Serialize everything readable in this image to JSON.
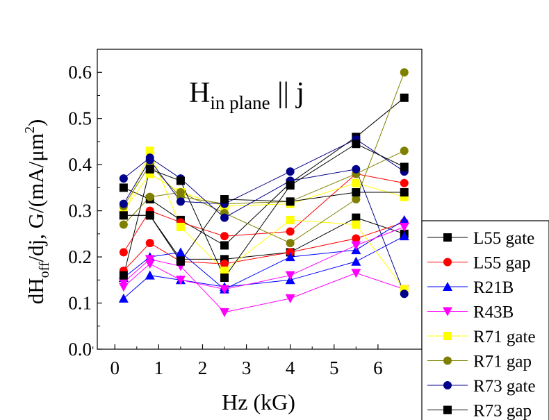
{
  "chart_data": {
    "type": "line",
    "title_main": "H",
    "title_sub": "in plane",
    "title_suffix": " || j",
    "xlabel": "Hz (kG)",
    "ylabel": {
      "p1": "dH",
      "p1_sub": "off",
      "p2": "/dj, G/(mA/μm",
      "p2_sup": "2",
      "p3": ")"
    },
    "xlim": [
      -0.4,
      7.0
    ],
    "ylim": [
      0.0,
      0.65
    ],
    "xticks": [
      0,
      1,
      2,
      3,
      4,
      5,
      6
    ],
    "xtick_labels": [
      "0",
      "1",
      "2",
      "3",
      "4",
      "5",
      "6"
    ],
    "yticks": [
      0.0,
      0.1,
      0.2,
      0.3,
      0.4,
      0.5,
      0.6
    ],
    "ytick_labels": [
      "0.0",
      "0.1",
      "0.2",
      "0.3",
      "0.4",
      "0.5",
      "0.6"
    ],
    "series": [
      {
        "name": "L55 gate",
        "color": "#000000",
        "marker": "square",
        "lines": [
          {
            "x": [
              0.2,
              0.8,
              1.5,
              2.5,
              4.0,
              5.5,
              6.6
            ],
            "y": [
              0.29,
              0.29,
              0.195,
              0.195,
              0.21,
              0.285,
              0.25
            ]
          },
          {
            "x": [
              0.2,
              0.8,
              1.5,
              2.5,
              4.0,
              5.5,
              6.6
            ],
            "y": [
              0.35,
              0.325,
              0.28,
              0.225,
              0.36,
              0.46,
              0.545
            ]
          }
        ]
      },
      {
        "name": "L55 gap",
        "color": "#ff0000",
        "marker": "circle",
        "lines": [
          {
            "x": [
              0.2,
              0.8,
              1.5,
              2.5,
              4.0,
              5.5,
              6.6
            ],
            "y": [
              0.21,
              0.3,
              0.275,
              0.245,
              0.255,
              0.38,
              0.36
            ]
          },
          {
            "x": [
              0.2,
              0.8,
              1.5,
              2.5,
              4.0,
              5.5,
              6.6
            ],
            "y": [
              0.17,
              0.23,
              0.19,
              0.185,
              0.21,
              0.24,
              0.275
            ]
          }
        ]
      },
      {
        "name": "R21B",
        "color": "#0000ff",
        "marker": "triangle-up",
        "lines": [
          {
            "x": [
              0.2,
              0.8,
              1.5,
              2.5,
              4.0,
              5.5,
              6.6
            ],
            "y": [
              0.11,
              0.16,
              0.15,
              0.135,
              0.15,
              0.19,
              0.245
            ]
          },
          {
            "x": [
              0.2,
              0.8,
              1.5,
              2.5,
              4.0,
              5.5,
              6.6
            ],
            "y": [
              0.155,
              0.2,
              0.21,
              0.13,
              0.2,
              0.215,
              0.28
            ]
          }
        ]
      },
      {
        "name": "R43B",
        "color": "#ff00ff",
        "marker": "triangle-down",
        "lines": [
          {
            "x": [
              0.2,
              0.8,
              1.5,
              2.5,
              4.0,
              5.5,
              6.6
            ],
            "y": [
              0.135,
              0.185,
              0.15,
              0.13,
              0.16,
              0.225,
              0.265
            ]
          },
          {
            "x": [
              0.2,
              0.8,
              1.5,
              2.5,
              4.0,
              5.5,
              6.6
            ],
            "y": [
              0.145,
              0.195,
              0.18,
              0.08,
              0.11,
              0.165,
              0.13
            ]
          }
        ]
      },
      {
        "name": "R71 gate",
        "color": "#ffff00",
        "marker": "square",
        "lines": [
          {
            "x": [
              0.2,
              0.8,
              1.5,
              2.5,
              4.0,
              5.5,
              6.6
            ],
            "y": [
              0.29,
              0.43,
              0.265,
              0.17,
              0.28,
              0.27,
              0.13
            ]
          },
          {
            "x": [
              0.2,
              0.8,
              1.5,
              2.5,
              4.0,
              5.5,
              6.6
            ],
            "y": [
              0.3,
              0.38,
              0.34,
              0.31,
              0.315,
              0.36,
              0.33
            ]
          }
        ]
      },
      {
        "name": "R71 gap",
        "color": "#808000",
        "marker": "circle",
        "lines": [
          {
            "x": [
              0.2,
              0.8,
              1.5,
              2.5,
              4.0,
              5.5,
              6.6
            ],
            "y": [
              0.27,
              0.33,
              0.34,
              0.295,
              0.23,
              0.325,
              0.6
            ]
          },
          {
            "x": [
              0.2,
              0.8,
              1.5,
              2.5,
              4.0,
              5.5,
              6.6
            ],
            "y": [
              0.31,
              0.4,
              0.33,
              0.315,
              0.32,
              0.38,
              0.43
            ]
          }
        ]
      },
      {
        "name": "R73 gate",
        "color": "#00008b",
        "marker": "circle",
        "lines": [
          {
            "x": [
              0.2,
              0.8,
              1.5,
              2.5,
              4.0,
              5.5,
              6.6
            ],
            "y": [
              0.37,
              0.415,
              0.37,
              0.285,
              0.365,
              0.39,
              0.12
            ]
          },
          {
            "x": [
              0.2,
              0.8,
              1.5,
              2.5,
              4.0,
              5.5,
              6.6
            ],
            "y": [
              0.315,
              0.41,
              0.32,
              0.315,
              0.385,
              0.455,
              0.385
            ]
          }
        ]
      },
      {
        "name": "R73 gap",
        "color": "#000000",
        "marker": "square",
        "lines": [
          {
            "x": [
              0.2,
              0.8,
              1.5,
              2.5,
              4.0,
              5.5,
              6.6
            ],
            "y": [
              0.16,
              0.39,
              0.365,
              0.155,
              0.355,
              0.445,
              0.395
            ]
          },
          {
            "x": [
              0.2,
              0.8,
              1.5,
              2.5,
              4.0,
              5.5,
              6.6
            ],
            "y": [
              0.29,
              0.29,
              0.19,
              0.325,
              0.32,
              0.34,
              0.34
            ]
          }
        ]
      }
    ],
    "legend_placement": "right-outside-bottom",
    "grid": false
  }
}
